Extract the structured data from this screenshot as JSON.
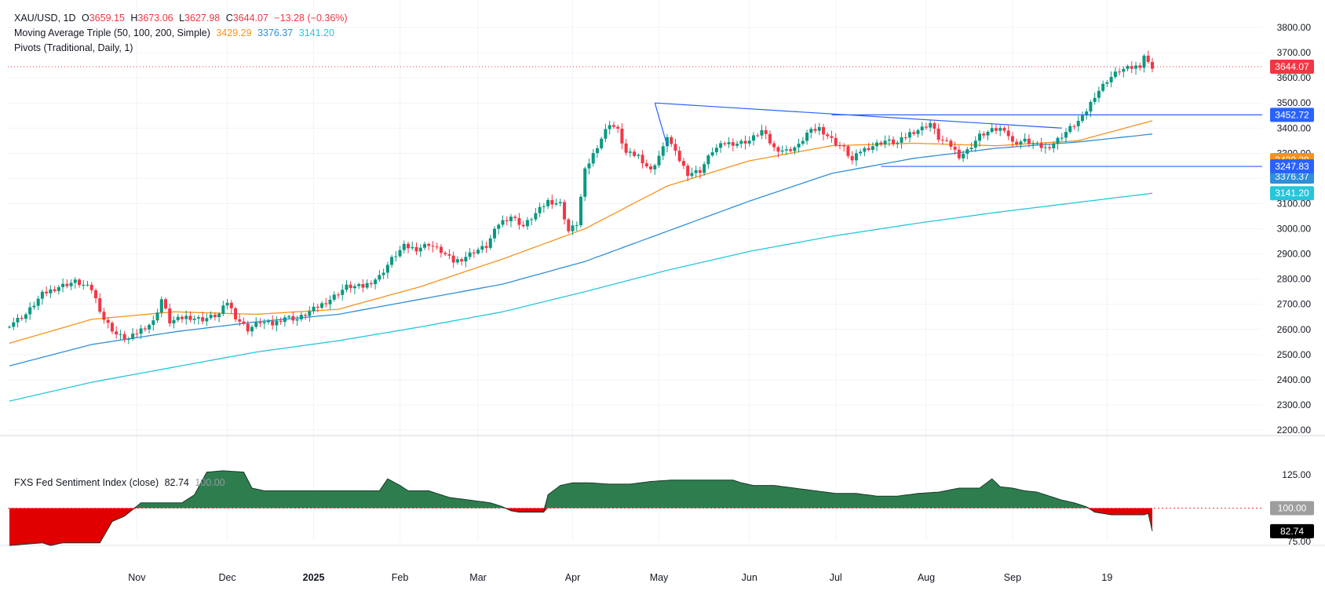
{
  "header": {
    "symbol": "XAU/USD, 1D",
    "open_label": "O",
    "open": "3659.15",
    "high_label": "H",
    "high": "3673.06",
    "low_label": "L",
    "low": "3627.98",
    "close_label": "C",
    "close": "3644.07",
    "change": "−13.28 (−0.36%)",
    "ma_label": "Moving Average Triple (50, 100, 200, Simple)",
    "ma50": "3429.29",
    "ma100": "3376.37",
    "ma200": "3141.20",
    "pivots_label": "Pivots (Traditional, Daily, 1)",
    "sentiment_label": "FXS Fed Sentiment Index (close)",
    "sentiment_value": "82.74",
    "sentiment_ref": "100.00"
  },
  "colors": {
    "up": "#089981",
    "down": "#f23645",
    "ma50": "#f7931a",
    "ma100": "#2f8fd8",
    "ma200": "#26c6da",
    "pivot": "#2962ff",
    "sent_pos": "#2e7d4f",
    "sent_neg": "#e00000",
    "grid": "#f0f3fa",
    "axis_text": "#131722"
  },
  "chart_data": [
    {
      "type": "candlestick",
      "title": "XAU/USD, 1D",
      "ylim": [
        2200,
        3850
      ],
      "y_ticks": [
        2200,
        2300,
        2400,
        2500,
        2600,
        2700,
        2800,
        2900,
        3000,
        3100,
        3200,
        3300,
        3400,
        3500,
        3600,
        3700,
        3800
      ],
      "x_ticks": [
        "Nov",
        "Dec",
        "2025",
        "Feb",
        "Mar",
        "Apr",
        "May",
        "Jun",
        "Jul",
        "Aug",
        "Sep",
        "19"
      ],
      "close_path": [
        [
          0,
          2620
        ],
        [
          4,
          2660
        ],
        [
          8,
          2740
        ],
        [
          12,
          2770
        ],
        [
          16,
          2790
        ],
        [
          20,
          2760
        ],
        [
          23,
          2640
        ],
        [
          26,
          2580
        ],
        [
          29,
          2560
        ],
        [
          32,
          2600
        ],
        [
          35,
          2630
        ],
        [
          37,
          2720
        ],
        [
          39,
          2630
        ],
        [
          43,
          2650
        ],
        [
          47,
          2640
        ],
        [
          51,
          2660
        ],
        [
          53,
          2710
        ],
        [
          55,
          2650
        ],
        [
          58,
          2600
        ],
        [
          61,
          2630
        ],
        [
          64,
          2620
        ],
        [
          67,
          2650
        ],
        [
          70,
          2640
        ],
        [
          74,
          2680
        ],
        [
          78,
          2720
        ],
        [
          82,
          2770
        ],
        [
          86,
          2770
        ],
        [
          90,
          2810
        ],
        [
          93,
          2880
        ],
        [
          96,
          2930
        ],
        [
          99,
          2920
        ],
        [
          102,
          2940
        ],
        [
          105,
          2910
        ],
        [
          108,
          2870
        ],
        [
          110,
          2880
        ],
        [
          113,
          2910
        ],
        [
          116,
          2930
        ],
        [
          119,
          3020
        ],
        [
          122,
          3050
        ],
        [
          125,
          3010
        ],
        [
          128,
          3060
        ],
        [
          131,
          3110
        ],
        [
          134,
          3100
        ],
        [
          136,
          2990
        ],
        [
          138,
          3020
        ],
        [
          140,
          3230
        ],
        [
          143,
          3330
        ],
        [
          146,
          3420
        ],
        [
          148,
          3390
        ],
        [
          150,
          3300
        ],
        [
          153,
          3290
        ],
        [
          156,
          3230
        ],
        [
          159,
          3320
        ],
        [
          160,
          3370
        ],
        [
          162,
          3300
        ],
        [
          165,
          3220
        ],
        [
          168,
          3230
        ],
        [
          171,
          3310
        ],
        [
          174,
          3340
        ],
        [
          177,
          3340
        ],
        [
          180,
          3350
        ],
        [
          183,
          3390
        ],
        [
          186,
          3320
        ],
        [
          189,
          3310
        ],
        [
          192,
          3330
        ],
        [
          194,
          3380
        ],
        [
          197,
          3400
        ],
        [
          199,
          3370
        ],
        [
          201,
          3340
        ],
        [
          203,
          3320
        ],
        [
          205,
          3270
        ],
        [
          207,
          3310
        ],
        [
          210,
          3330
        ],
        [
          213,
          3350
        ],
        [
          216,
          3340
        ],
        [
          219,
          3380
        ],
        [
          222,
          3400
        ],
        [
          224,
          3420
        ],
        [
          226,
          3360
        ],
        [
          229,
          3330
        ],
        [
          231,
          3290
        ],
        [
          233,
          3310
        ],
        [
          236,
          3370
        ],
        [
          239,
          3390
        ],
        [
          242,
          3400
        ],
        [
          244,
          3340
        ],
        [
          247,
          3350
        ],
        [
          250,
          3330
        ],
        [
          252,
          3320
        ],
        [
          254,
          3340
        ],
        [
          256,
          3370
        ],
        [
          258,
          3400
        ],
        [
          261,
          3440
        ],
        [
          264,
          3530
        ],
        [
          267,
          3590
        ],
        [
          270,
          3630
        ],
        [
          273,
          3640
        ],
        [
          275,
          3650
        ],
        [
          276,
          3690
        ],
        [
          277,
          3657
        ],
        [
          278,
          3644
        ]
      ],
      "last_close": 3644.07,
      "ma50_path": [
        [
          0,
          2545
        ],
        [
          20,
          2640
        ],
        [
          40,
          2670
        ],
        [
          60,
          2660
        ],
        [
          80,
          2680
        ],
        [
          100,
          2770
        ],
        [
          120,
          2880
        ],
        [
          140,
          3000
        ],
        [
          160,
          3170
        ],
        [
          180,
          3270
        ],
        [
          200,
          3330
        ],
        [
          220,
          3340
        ],
        [
          240,
          3330
        ],
        [
          260,
          3350
        ],
        [
          278,
          3429.29
        ]
      ],
      "ma100_path": [
        [
          0,
          2455
        ],
        [
          20,
          2540
        ],
        [
          40,
          2590
        ],
        [
          60,
          2630
        ],
        [
          80,
          2660
        ],
        [
          100,
          2720
        ],
        [
          120,
          2780
        ],
        [
          140,
          2870
        ],
        [
          160,
          2990
        ],
        [
          180,
          3110
        ],
        [
          200,
          3220
        ],
        [
          220,
          3280
        ],
        [
          240,
          3320
        ],
        [
          260,
          3345
        ],
        [
          278,
          3376.37
        ]
      ],
      "ma200_path": [
        [
          0,
          2315
        ],
        [
          20,
          2390
        ],
        [
          40,
          2450
        ],
        [
          60,
          2510
        ],
        [
          80,
          2555
        ],
        [
          100,
          2610
        ],
        [
          120,
          2670
        ],
        [
          140,
          2750
        ],
        [
          160,
          2835
        ],
        [
          180,
          2910
        ],
        [
          200,
          2970
        ],
        [
          220,
          3020
        ],
        [
          240,
          3065
        ],
        [
          260,
          3105
        ],
        [
          278,
          3141.2
        ]
      ],
      "trendline": {
        "from": [
          157,
          3500
        ],
        "to": [
          256,
          3400
        ]
      },
      "levels": [
        {
          "label": "3452.72",
          "value": 3452.72,
          "from": 200
        },
        {
          "label": "3247.83",
          "value": 3247.83,
          "from": 212
        }
      ],
      "price_labels": [
        "3644.07",
        "3452.72",
        "3429.29",
        "3376.37",
        "3247.83",
        "3141.20"
      ]
    },
    {
      "type": "area",
      "title": "FXS Fed Sentiment Index (close)",
      "baseline": 100,
      "ylim": [
        65,
        137
      ],
      "y_ticks": [
        75,
        125
      ],
      "last_value": 82.74,
      "points": [
        [
          0,
          72
        ],
        [
          4,
          73
        ],
        [
          8,
          74
        ],
        [
          10,
          72
        ],
        [
          13,
          74
        ],
        [
          17,
          74
        ],
        [
          22,
          74
        ],
        [
          25,
          90
        ],
        [
          28,
          94
        ],
        [
          30,
          99
        ],
        [
          32,
          104
        ],
        [
          37,
          104
        ],
        [
          42,
          104
        ],
        [
          45,
          110
        ],
        [
          48,
          127
        ],
        [
          52,
          128
        ],
        [
          57,
          127
        ],
        [
          59,
          115
        ],
        [
          62,
          113
        ],
        [
          67,
          113
        ],
        [
          72,
          113
        ],
        [
          77,
          113
        ],
        [
          82,
          113
        ],
        [
          87,
          113
        ],
        [
          90,
          113
        ],
        [
          92,
          122
        ],
        [
          95,
          117
        ],
        [
          97,
          113
        ],
        [
          102,
          113
        ],
        [
          107,
          108
        ],
        [
          112,
          106
        ],
        [
          117,
          104
        ],
        [
          120,
          101
        ],
        [
          122,
          98
        ],
        [
          124,
          97
        ],
        [
          128,
          97
        ],
        [
          130,
          97
        ],
        [
          131,
          110
        ],
        [
          134,
          117
        ],
        [
          137,
          119
        ],
        [
          141,
          119
        ],
        [
          146,
          118
        ],
        [
          151,
          118
        ],
        [
          156,
          120
        ],
        [
          161,
          121
        ],
        [
          166,
          121
        ],
        [
          171,
          121
        ],
        [
          176,
          121
        ],
        [
          178,
          119
        ],
        [
          181,
          117
        ],
        [
          186,
          117
        ],
        [
          191,
          115
        ],
        [
          196,
          113
        ],
        [
          201,
          111
        ],
        [
          206,
          111
        ],
        [
          211,
          109
        ],
        [
          216,
          109
        ],
        [
          221,
          111
        ],
        [
          226,
          112
        ],
        [
          231,
          115
        ],
        [
          234,
          115
        ],
        [
          236,
          115
        ],
        [
          239,
          122
        ],
        [
          241,
          116
        ],
        [
          244,
          115
        ],
        [
          247,
          113
        ],
        [
          250,
          112
        ],
        [
          253,
          109
        ],
        [
          256,
          106
        ],
        [
          259,
          104
        ],
        [
          262,
          101
        ],
        [
          264,
          97
        ],
        [
          268,
          95
        ],
        [
          272,
          95
        ],
        [
          276,
          95
        ],
        [
          277,
          96
        ],
        [
          278,
          82.74
        ]
      ]
    }
  ]
}
